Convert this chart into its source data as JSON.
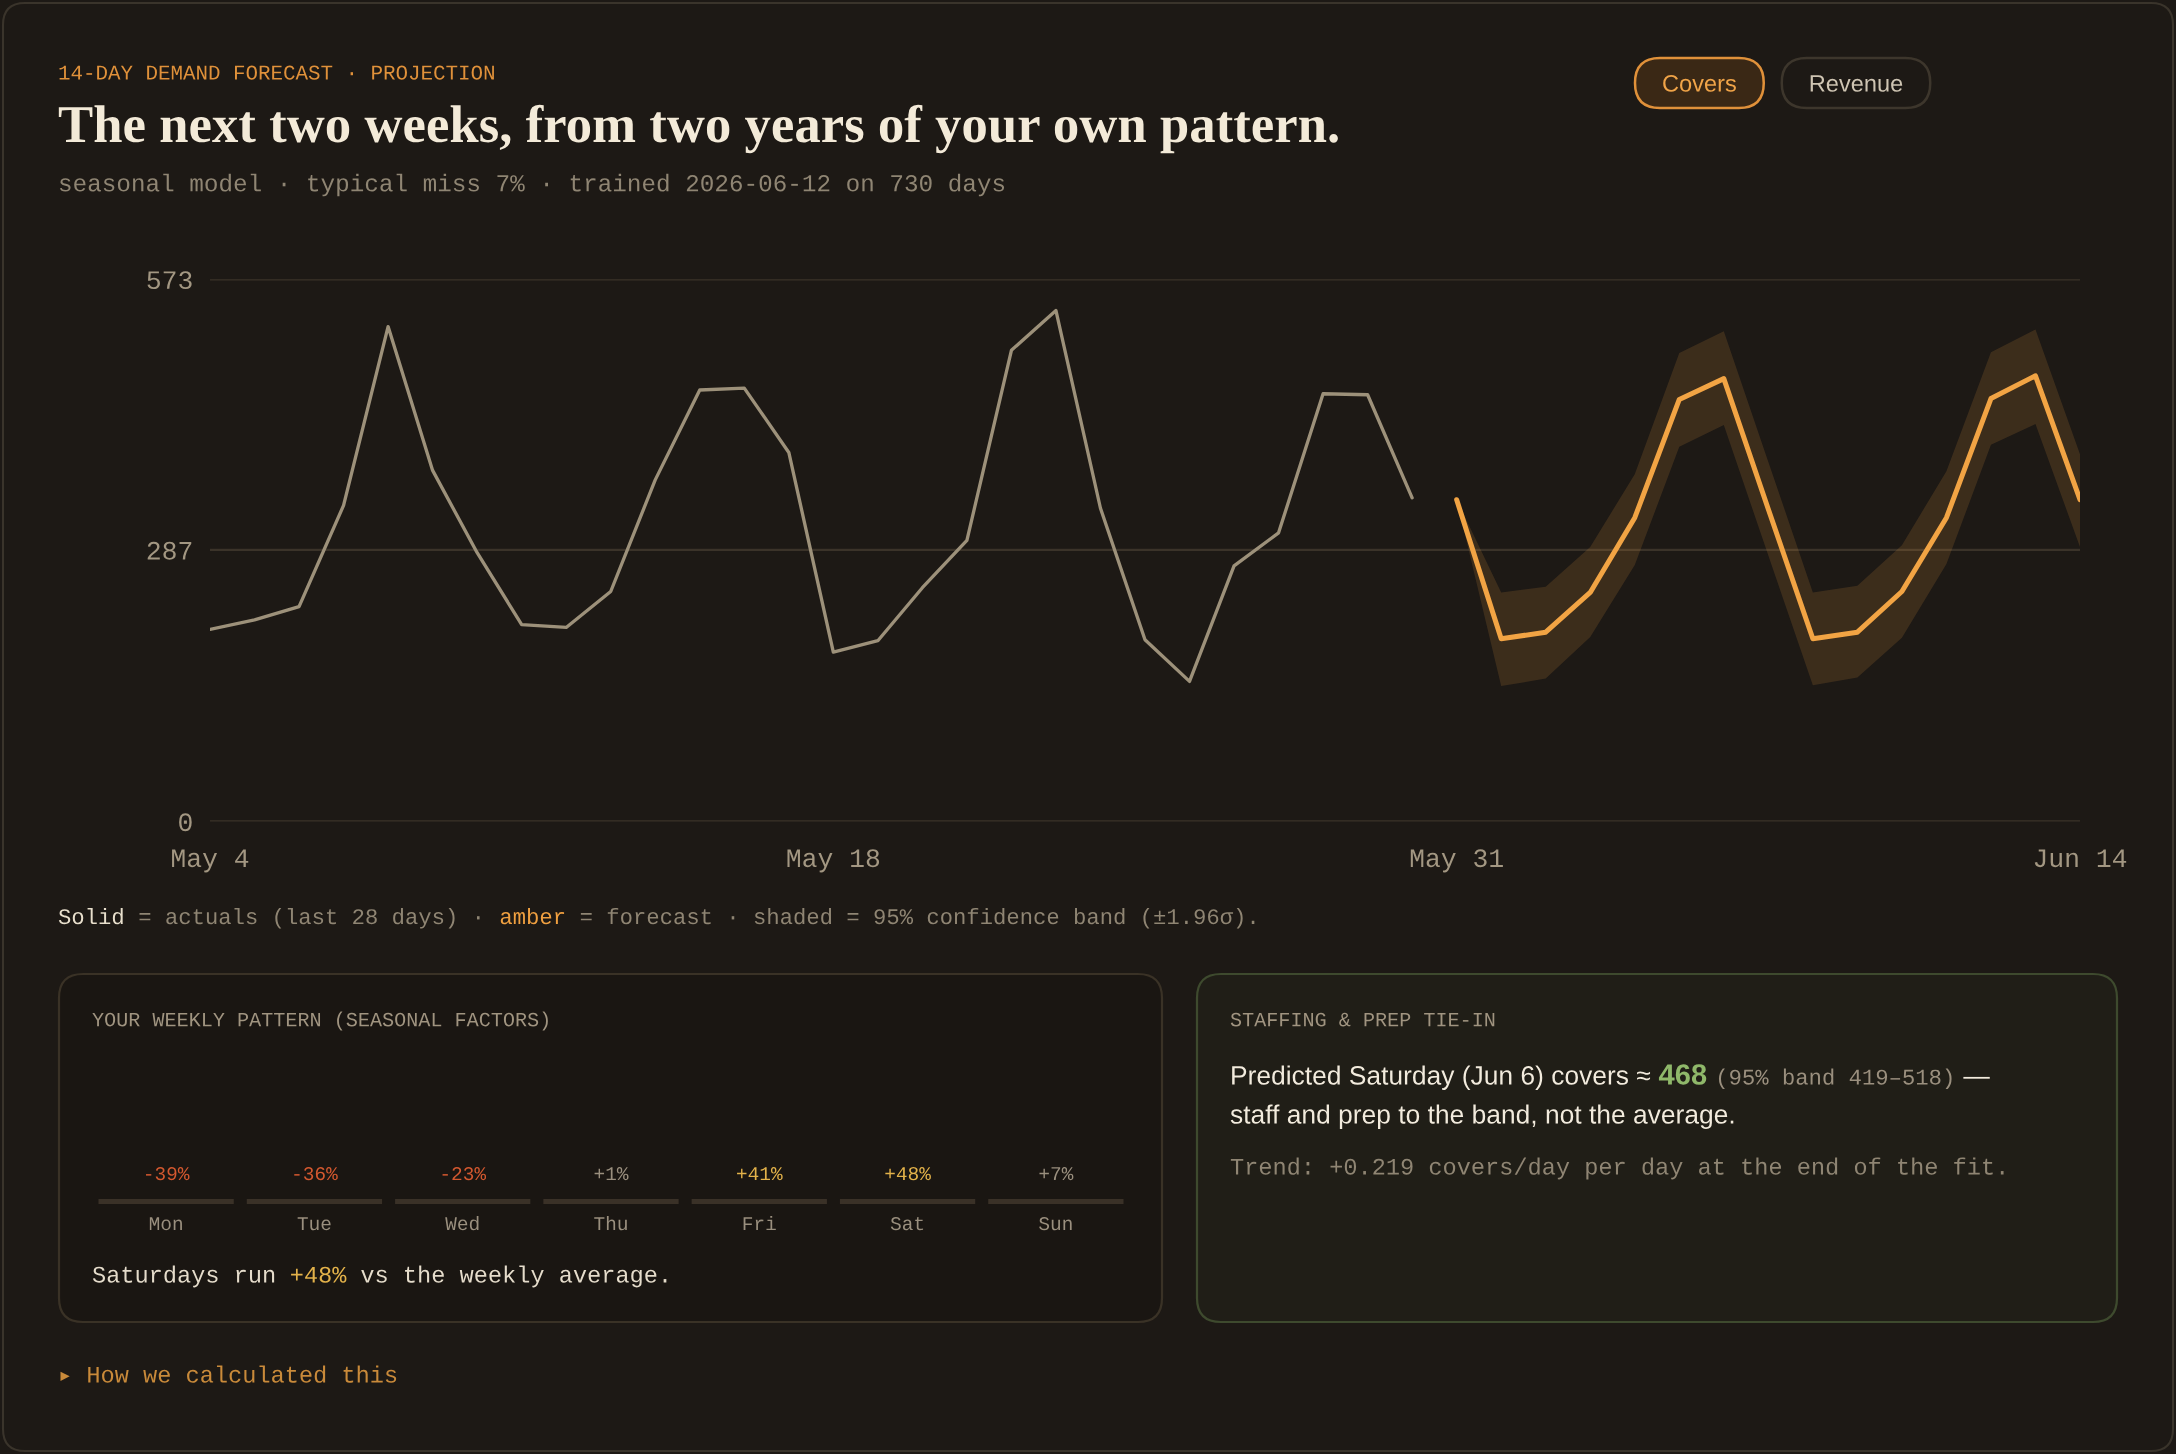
{
  "chart_data": [
    {
      "type": "line",
      "title": "The next two weeks, from two years of your own pattern.",
      "subtitle": "seasonal model · typical miss 7% · trained 2026-06-12 on 730 days",
      "categories": [
        "May 4",
        null,
        null,
        null,
        null,
        null,
        null,
        null,
        null,
        null,
        null,
        null,
        null,
        null,
        "May 18",
        null,
        null,
        null,
        null,
        null,
        null,
        null,
        null,
        null,
        null,
        null,
        null,
        null,
        "May 31",
        null,
        null,
        null,
        null,
        null,
        null,
        null,
        null,
        null,
        null,
        null,
        null,
        null,
        "Jun 14"
      ],
      "series": [
        {
          "color": "#9d917a",
          "values": [
            203,
            213,
            227,
            334,
            523,
            371,
            284,
            208,
            205,
            243,
            361,
            456,
            458,
            390,
            179,
            191,
            247,
            297,
            498,
            540,
            331,
            192,
            148,
            270,
            305,
            452,
            451,
            342,
            null,
            null,
            null,
            null,
            null,
            null,
            null,
            null,
            null,
            null,
            null,
            null,
            null,
            null,
            null
          ]
        },
        {
          "color": "#f2a444",
          "values": [
            null,
            null,
            null,
            null,
            null,
            null,
            null,
            null,
            null,
            null,
            null,
            null,
            null,
            null,
            null,
            null,
            null,
            null,
            null,
            null,
            null,
            null,
            null,
            null,
            null,
            null,
            null,
            null,
            340,
            193,
            200,
            242,
            321,
            446,
            468,
            330,
            193,
            200,
            243,
            321,
            447,
            471,
            340
          ],
          "lower": [
            null,
            null,
            null,
            null,
            null,
            null,
            null,
            null,
            null,
            null,
            null,
            null,
            null,
            null,
            null,
            null,
            null,
            null,
            null,
            null,
            null,
            null,
            null,
            null,
            null,
            null,
            null,
            null,
            340,
            143,
            151,
            195,
            271,
            396,
            419,
            281,
            144,
            152,
            194,
            272,
            398,
            420,
            290
          ],
          "upper": [
            null,
            null,
            null,
            null,
            null,
            null,
            null,
            null,
            null,
            null,
            null,
            null,
            null,
            null,
            null,
            null,
            null,
            null,
            null,
            null,
            null,
            null,
            null,
            null,
            null,
            null,
            null,
            null,
            340,
            242,
            248,
            290,
            367,
            495,
            518,
            380,
            242,
            249,
            292,
            370,
            496,
            520,
            388
          ]
        }
      ],
      "ylim": [
        0,
        573
      ],
      "yticks": [
        0,
        287,
        573
      ],
      "grid": "y",
      "annotations": [
        "14-DAY DEMAND FORECAST · PROJECTION",
        "Covers",
        "Revenue",
        "Solid",
        "= actuals (last 28 days) ·",
        "amber",
        "= forecast · shaded = 95% confidence band (±1.96σ).",
        "▸ How we calculated this"
      ]
    },
    {
      "type": "other",
      "title": "YOUR WEEKLY PATTERN (SEASONAL FACTORS)",
      "categories": [
        "Mon",
        "Tue",
        "Wed",
        "Thu",
        "Fri",
        "Sat",
        "Sun"
      ],
      "value_labels": [
        "-39%",
        "-36%",
        "-23%",
        "+1%",
        "+41%",
        "+48%",
        "+7%"
      ],
      "annotations": [
        "Saturdays run",
        "+48%",
        "vs the weekly average."
      ]
    },
    {
      "type": "other",
      "title": "STAFFING & PREP TIE-IN",
      "annotations": [
        "Predicted Saturday (Jun 6) covers ≈",
        "468",
        "(95% band 419–518)",
        "—",
        "staff and prep to the band, not the average.",
        "Trend: +0.219 covers/day per day at the end of the fit."
      ]
    }
  ]
}
